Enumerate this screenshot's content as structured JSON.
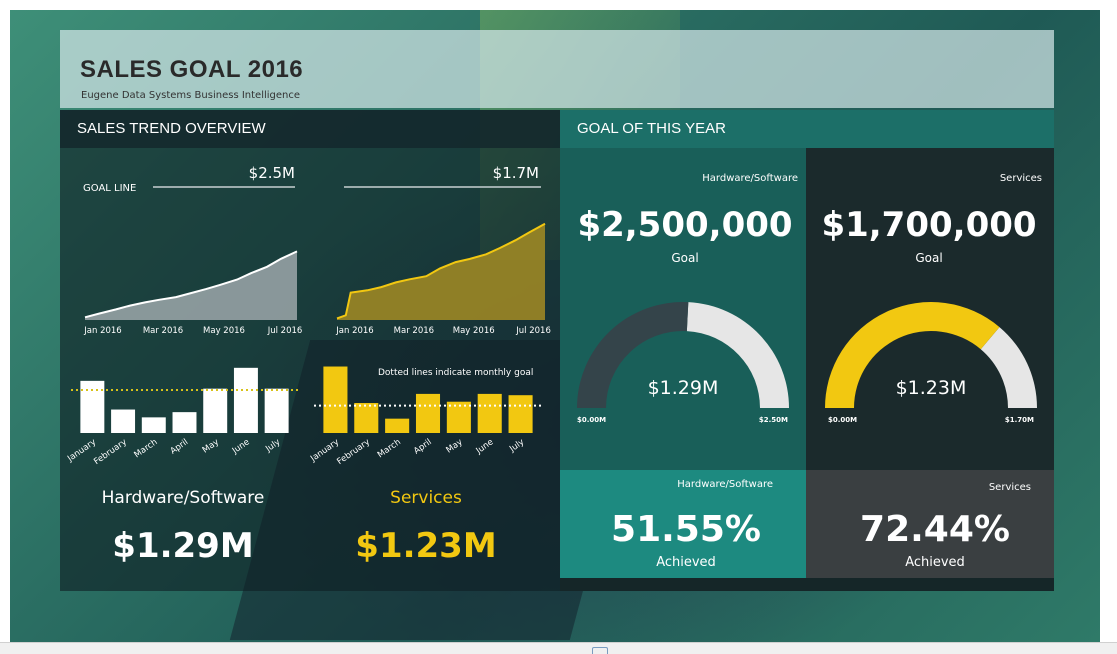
{
  "header": {
    "title": "SALES GOAL 2016",
    "subtitle": "Eugene Data Systems Business Intelligence"
  },
  "left_panel": {
    "heading": "SALES TREND OVERVIEW",
    "goal_line_label": "GOAL LINE",
    "hw_goal_label": "$2.5M",
    "sv_goal_label": "$1.7M",
    "dotted_note": "Dotted lines indicate monthly goal",
    "hw_label": "Hardware/Software",
    "hw_value": "$1.29M",
    "sv_label": "Services",
    "sv_value": "$1.23M"
  },
  "right_panel": {
    "heading": "GOAL OF THIS YEAR",
    "hw": {
      "label": "Hardware/Software",
      "goal": "$2,500,000",
      "goal_caption": "Goal",
      "gauge_value": "$1.29M",
      "gauge_min": "$0.00M",
      "gauge_max": "$2.50M",
      "achieved_label": "Hardware/Software",
      "achieved_pct": "51.55%",
      "achieved_caption": "Achieved"
    },
    "sv": {
      "label": "Services",
      "goal": "$1,700,000",
      "goal_caption": "Goal",
      "gauge_value": "$1.23M",
      "gauge_min": "$0.00M",
      "gauge_max": "$1.70M",
      "achieved_label": "Services",
      "achieved_pct": "72.44%",
      "achieved_caption": "Achieved"
    }
  },
  "colors": {
    "hw": "#ffffff",
    "sv": "#f2c811",
    "goal_line": "#c8d0d2",
    "gauge_track": "#e6e6e6",
    "gauge_hw_fill": "#34444a",
    "gauge_sv_fill": "#f2c811"
  },
  "chart_data": [
    {
      "type": "area",
      "series": [
        {
          "name": "Hardware/Software"
        }
      ],
      "x_ticks": [
        "Jan 2016",
        "Mar 2016",
        "May 2016",
        "Jul 2016"
      ],
      "goal_label": "$2.5M",
      "ylim": [
        0,
        2.5
      ],
      "x": [
        "2016-01-01",
        "2016-01-15",
        "2016-02-01",
        "2016-02-15",
        "2016-03-01",
        "2016-03-15",
        "2016-04-01",
        "2016-04-15",
        "2016-05-01",
        "2016-05-15",
        "2016-06-01",
        "2016-06-15",
        "2016-07-01",
        "2016-07-15",
        "2016-07-31"
      ],
      "values": [
        0.05,
        0.12,
        0.2,
        0.27,
        0.33,
        0.38,
        0.43,
        0.5,
        0.58,
        0.66,
        0.76,
        0.88,
        1.0,
        1.15,
        1.29
      ]
    },
    {
      "type": "area",
      "series": [
        {
          "name": "Services"
        }
      ],
      "x_ticks": [
        "Jan 2016",
        "Mar 2016",
        "May 2016",
        "Jul 2016"
      ],
      "goal_label": "$1.7M",
      "ylim": [
        0,
        1.7
      ],
      "x": [
        "2016-01-01",
        "2016-01-10",
        "2016-01-15",
        "2016-02-01",
        "2016-02-15",
        "2016-03-01",
        "2016-03-15",
        "2016-04-01",
        "2016-04-15",
        "2016-05-01",
        "2016-05-15",
        "2016-06-01",
        "2016-06-15",
        "2016-07-01",
        "2016-07-15",
        "2016-07-31"
      ],
      "values": [
        0.02,
        0.06,
        0.35,
        0.38,
        0.42,
        0.48,
        0.52,
        0.56,
        0.66,
        0.74,
        0.78,
        0.84,
        0.92,
        1.02,
        1.12,
        1.23
      ]
    },
    {
      "type": "bar",
      "categories": [
        "January",
        "February",
        "March",
        "April",
        "May",
        "June",
        "July"
      ],
      "series": [
        {
          "name": "Hardware/Software",
          "values": [
            0.2,
            0.09,
            0.06,
            0.08,
            0.17,
            0.25,
            0.17
          ]
        }
      ],
      "monthly_goal": 0.165,
      "ylim": [
        0,
        0.28
      ]
    },
    {
      "type": "bar",
      "categories": [
        "January",
        "February",
        "March",
        "April",
        "May",
        "June",
        "July"
      ],
      "series": [
        {
          "name": "Services",
          "values": [
            0.255,
            0.115,
            0.055,
            0.15,
            0.12,
            0.15,
            0.145
          ]
        }
      ],
      "monthly_goal": 0.105,
      "ylim": [
        0,
        0.28
      ]
    },
    {
      "type": "gauge",
      "series": [
        {
          "name": "Hardware/Software",
          "value": 1.29
        }
      ],
      "min": 0,
      "max": 2.5
    },
    {
      "type": "gauge",
      "series": [
        {
          "name": "Services",
          "value": 1.23
        }
      ],
      "min": 0,
      "max": 1.7
    }
  ]
}
